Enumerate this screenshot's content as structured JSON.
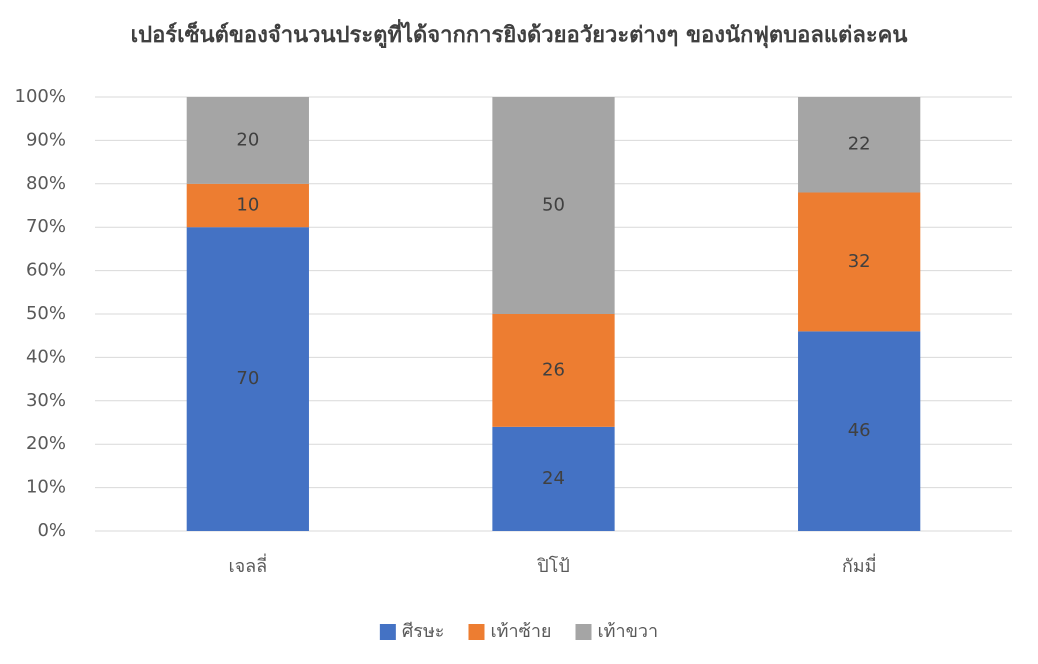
{
  "chart_data": {
    "type": "bar",
    "stacked": true,
    "title": "เปอร์เซ็นต์ของจำนวนประตูที่ได้จากการยิงด้วยอวัยวะต่างๆ ของนักฟุตบอลแต่ละคน",
    "categories": [
      "เจลลี่",
      "ปิโป้",
      "กัมมี่"
    ],
    "series": [
      {
        "name": "ศีรษะ",
        "color": "#4472c4",
        "values": [
          70,
          24,
          46
        ]
      },
      {
        "name": "เท้าซ้าย",
        "color": "#ed7d31",
        "values": [
          10,
          26,
          32
        ]
      },
      {
        "name": "เท้าขวา",
        "color": "#a5a5a5",
        "values": [
          20,
          50,
          22
        ]
      }
    ],
    "ylim": [
      0,
      100
    ],
    "yticks": [
      {
        "value": 0,
        "label": "0%"
      },
      {
        "value": 10,
        "label": "10%"
      },
      {
        "value": 20,
        "label": "20%"
      },
      {
        "value": 30,
        "label": "30%"
      },
      {
        "value": 40,
        "label": "40%"
      },
      {
        "value": 50,
        "label": "50%"
      },
      {
        "value": 60,
        "label": "60%"
      },
      {
        "value": 70,
        "label": "70%"
      },
      {
        "value": 80,
        "label": "80%"
      },
      {
        "value": 90,
        "label": "90%"
      },
      {
        "value": 100,
        "label": "100%"
      }
    ],
    "grid": true,
    "legend": "bottom"
  }
}
